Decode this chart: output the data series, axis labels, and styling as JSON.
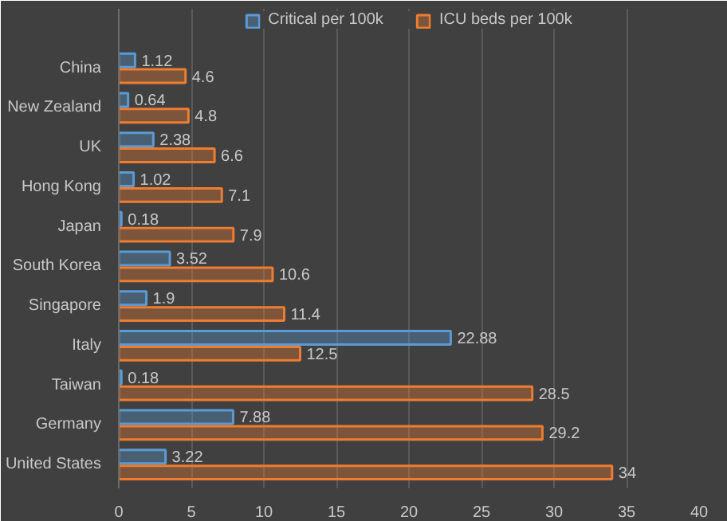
{
  "chart_data": {
    "type": "bar",
    "orientation": "horizontal",
    "categories": [
      "China",
      "New Zealand",
      "UK",
      "Hong Kong",
      "Japan",
      "South Korea",
      "Singapore",
      "Italy",
      "Taiwan",
      "Germany",
      "United States"
    ],
    "series": [
      {
        "name": "Critical per 100k",
        "color": "#5b9bd5",
        "values": [
          1.12,
          0.64,
          2.38,
          1.02,
          0.18,
          3.52,
          1.9,
          22.88,
          0.18,
          7.88,
          3.22
        ]
      },
      {
        "name": "ICU beds per 100k",
        "color": "#ed7d31",
        "values": [
          4.6,
          4.8,
          6.6,
          7.1,
          7.9,
          10.6,
          11.4,
          12.5,
          28.5,
          29.2,
          34
        ]
      }
    ],
    "xlim": [
      0,
      40
    ],
    "xticks": [
      0,
      5,
      10,
      15,
      20,
      25,
      30,
      35,
      40
    ],
    "data_labels": true,
    "grid": "x",
    "legend": "top"
  }
}
